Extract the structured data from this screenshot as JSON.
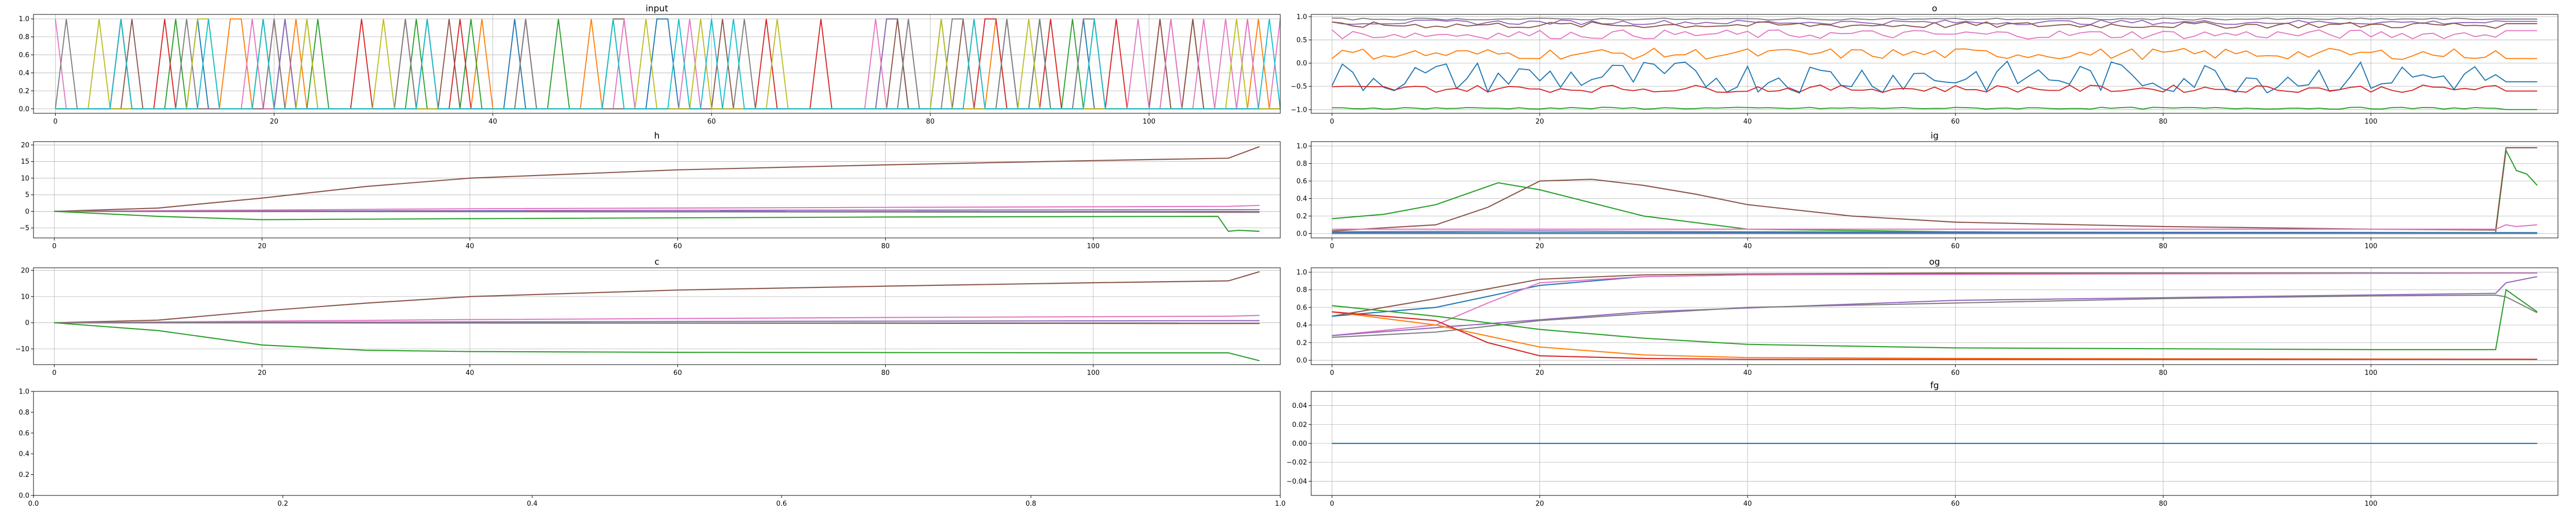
{
  "chart_data": [
    {
      "type": "line",
      "title": "input",
      "xlim": [
        -2,
        112
      ],
      "ylim": [
        -0.05,
        1.05
      ],
      "xticks": [
        0,
        20,
        40,
        60,
        80,
        100
      ],
      "xtick_labels": [
        "0",
        "20",
        "40",
        "60",
        "80",
        "100"
      ],
      "yticks": [
        0,
        0.2,
        0.4,
        0.6,
        0.8,
        1.0
      ],
      "ytick_labels": [
        "0.0",
        "0.2",
        "0.4",
        "0.6",
        "0.8",
        "1.0"
      ],
      "grid": true,
      "series_count": 10,
      "series_colors": [
        "#1f77b4",
        "#ff7f0e",
        "#2ca02c",
        "#d62728",
        "#9467bd",
        "#8c564b",
        "#e377c2",
        "#7f7f7f",
        "#bcbd22",
        "#17becf"
      ],
      "x_end": 112,
      "description": "one-hot token sequence: at each step a different series spikes to 1.0"
    },
    {
      "type": "line",
      "title": "o",
      "xlim": [
        -2,
        118
      ],
      "ylim": [
        -1.08,
        1.05
      ],
      "xticks": [
        0,
        20,
        40,
        60,
        80,
        100
      ],
      "xtick_labels": [
        "0",
        "20",
        "40",
        "60",
        "80",
        "100"
      ],
      "yticks": [
        -1.0,
        -0.5,
        0.0,
        0.5,
        1.0
      ],
      "ytick_labels": [
        "−1.0",
        "−0.5",
        "0.0",
        "0.5",
        "1.0"
      ],
      "grid": true,
      "x_end": 116,
      "series": [
        {
          "color": "#9467bd",
          "base": 0.88,
          "noise": 0.05,
          "end": 0.9
        },
        {
          "color": "#8c564b",
          "base": 0.82,
          "noise": 0.07,
          "end": 0.85
        },
        {
          "color": "#e377c2",
          "base": 0.62,
          "noise": 0.1,
          "end": 0.7
        },
        {
          "color": "#ff7f0e",
          "base": 0.2,
          "noise": 0.12,
          "end": 0.1
        },
        {
          "color": "#1f77b4",
          "base": -0.3,
          "noise": 0.35,
          "end": -0.4
        },
        {
          "color": "#d62728",
          "base": -0.55,
          "noise": 0.08,
          "end": -0.6
        },
        {
          "color": "#2ca02c",
          "base": -0.97,
          "noise": 0.02,
          "end": -1.0
        },
        {
          "color": "#7f7f7f",
          "base": 0.95,
          "noise": 0.02,
          "end": 0.95
        }
      ]
    },
    {
      "type": "line",
      "title": "h",
      "xlim": [
        -2,
        118
      ],
      "ylim": [
        -8,
        21
      ],
      "xticks": [
        0,
        20,
        40,
        60,
        80,
        100
      ],
      "xtick_labels": [
        "0",
        "20",
        "40",
        "60",
        "80",
        "100"
      ],
      "yticks": [
        -5,
        0,
        5,
        10,
        15,
        20
      ],
      "ytick_labels": [
        "−5",
        "0",
        "5",
        "10",
        "15",
        "20"
      ],
      "grid": true,
      "series": [
        {
          "color": "#8c564b",
          "x": [
            0,
            10,
            20,
            30,
            40,
            60,
            80,
            100,
            113,
            116
          ],
          "y": [
            0,
            1,
            4,
            7.5,
            10,
            12.5,
            14,
            15.3,
            16,
            19.5
          ]
        },
        {
          "color": "#e377c2",
          "x": [
            0,
            40,
            80,
            113,
            116
          ],
          "y": [
            0,
            0.8,
            1.2,
            1.5,
            1.8
          ]
        },
        {
          "color": "#9467bd",
          "x": [
            0,
            60,
            116
          ],
          "y": [
            0,
            0.3,
            0.5
          ]
        },
        {
          "color": "#1f77b4",
          "x": [
            0,
            116
          ],
          "y": [
            0,
            -0.1
          ]
        },
        {
          "color": "#d62728",
          "x": [
            0,
            116
          ],
          "y": [
            0,
            -0.2
          ]
        },
        {
          "color": "#7f7f7f",
          "x": [
            0,
            116
          ],
          "y": [
            0,
            -0.3
          ]
        },
        {
          "color": "#2ca02c",
          "x": [
            0,
            10,
            20,
            40,
            80,
            112,
            113,
            114,
            116
          ],
          "y": [
            0,
            -1.5,
            -2.5,
            -2.2,
            -1.7,
            -1.5,
            -6,
            -5.7,
            -6
          ]
        }
      ]
    },
    {
      "type": "line",
      "title": "ig",
      "xlim": [
        -2,
        118
      ],
      "ylim": [
        -0.05,
        1.05
      ],
      "xticks": [
        0,
        20,
        40,
        60,
        80,
        100
      ],
      "xtick_labels": [
        "0",
        "20",
        "40",
        "60",
        "80",
        "100"
      ],
      "yticks": [
        0,
        0.2,
        0.4,
        0.6,
        0.8,
        1.0
      ],
      "ytick_labels": [
        "0.0",
        "0.2",
        "0.4",
        "0.6",
        "0.8",
        "1.0"
      ],
      "grid": true,
      "series": [
        {
          "color": "#2ca02c",
          "x": [
            0,
            5,
            10,
            16,
            20,
            25,
            30,
            40,
            60,
            80,
            100,
            112,
            113,
            114,
            115,
            116
          ],
          "y": [
            0.17,
            0.22,
            0.33,
            0.58,
            0.5,
            0.35,
            0.2,
            0.05,
            0.02,
            0.01,
            0.01,
            0.01,
            0.95,
            0.72,
            0.68,
            0.55
          ]
        },
        {
          "color": "#8c564b",
          "x": [
            0,
            10,
            15,
            20,
            25,
            30,
            35,
            40,
            50,
            60,
            80,
            100,
            112,
            113,
            116
          ],
          "y": [
            0.03,
            0.1,
            0.3,
            0.6,
            0.62,
            0.55,
            0.45,
            0.33,
            0.2,
            0.13,
            0.08,
            0.05,
            0.04,
            0.98,
            0.98
          ]
        },
        {
          "color": "#e377c2",
          "x": [
            0,
            20,
            112,
            113,
            114,
            116
          ],
          "y": [
            0.05,
            0.05,
            0.05,
            0.1,
            0.08,
            0.1
          ]
        },
        {
          "color": "#9467bd",
          "x": [
            0,
            20,
            40,
            116
          ],
          "y": [
            0.02,
            0.03,
            0.02,
            0.01
          ]
        },
        {
          "color": "#1f77b4",
          "x": [
            0,
            116
          ],
          "y": [
            0.01,
            0.01
          ]
        },
        {
          "color": "#7f7f7f",
          "x": [
            0,
            116
          ],
          "y": [
            0.0,
            0.0
          ]
        }
      ]
    },
    {
      "type": "line",
      "title": "c",
      "xlim": [
        -2,
        118
      ],
      "ylim": [
        -16,
        21
      ],
      "xticks": [
        0,
        20,
        40,
        60,
        80,
        100
      ],
      "xtick_labels": [
        "0",
        "20",
        "40",
        "60",
        "80",
        "100"
      ],
      "yticks": [
        -10,
        0,
        10,
        20
      ],
      "ytick_labels": [
        "−10",
        "0",
        "10",
        "20"
      ],
      "grid": true,
      "series": [
        {
          "color": "#8c564b",
          "x": [
            0,
            10,
            20,
            30,
            40,
            60,
            80,
            100,
            113,
            116
          ],
          "y": [
            0,
            1,
            4.5,
            7.5,
            10,
            12.5,
            14,
            15.3,
            16,
            19.5
          ]
        },
        {
          "color": "#e377c2",
          "x": [
            0,
            40,
            80,
            113,
            116
          ],
          "y": [
            0,
            1.2,
            2,
            2.5,
            2.8
          ]
        },
        {
          "color": "#9467bd",
          "x": [
            0,
            60,
            116
          ],
          "y": [
            0,
            0.5,
            0.8
          ]
        },
        {
          "color": "#1f77b4",
          "x": [
            0,
            116
          ],
          "y": [
            0,
            -0.2
          ]
        },
        {
          "color": "#d62728",
          "x": [
            0,
            116
          ],
          "y": [
            0,
            -0.3
          ]
        },
        {
          "color": "#7f7f7f",
          "x": [
            0,
            116
          ],
          "y": [
            0,
            -0.1
          ]
        },
        {
          "color": "#2ca02c",
          "x": [
            0,
            10,
            20,
            30,
            40,
            60,
            80,
            100,
            113,
            116
          ],
          "y": [
            0,
            -3,
            -8.5,
            -10.5,
            -11,
            -11.3,
            -11.4,
            -11.5,
            -11.5,
            -14.5
          ]
        }
      ]
    },
    {
      "type": "line",
      "title": "og",
      "xlim": [
        -2,
        118
      ],
      "ylim": [
        -0.05,
        1.05
      ],
      "xticks": [
        0,
        20,
        40,
        60,
        80,
        100
      ],
      "xtick_labels": [
        "0",
        "20",
        "40",
        "60",
        "80",
        "100"
      ],
      "yticks": [
        0,
        0.2,
        0.4,
        0.6,
        0.8,
        1.0
      ],
      "ytick_labels": [
        "0.0",
        "0.2",
        "0.4",
        "0.6",
        "0.8",
        "1.0"
      ],
      "grid": true,
      "series": [
        {
          "color": "#8c564b",
          "x": [
            0,
            10,
            20,
            30,
            40,
            60,
            116
          ],
          "y": [
            0.5,
            0.7,
            0.92,
            0.97,
            0.98,
            0.99,
            0.99
          ]
        },
        {
          "color": "#1f77b4",
          "x": [
            0,
            10,
            20,
            30,
            40,
            60,
            116
          ],
          "y": [
            0.5,
            0.6,
            0.85,
            0.95,
            0.97,
            0.98,
            0.99
          ]
        },
        {
          "color": "#e377c2",
          "x": [
            0,
            10,
            15,
            20,
            30,
            40,
            116
          ],
          "y": [
            0.28,
            0.4,
            0.65,
            0.88,
            0.95,
            0.97,
            0.99
          ]
        },
        {
          "color": "#9467bd",
          "x": [
            0,
            30,
            60,
            112,
            113,
            116
          ],
          "y": [
            0.28,
            0.55,
            0.68,
            0.76,
            0.88,
            0.95
          ]
        },
        {
          "color": "#7f7f7f",
          "x": [
            0,
            10,
            20,
            30,
            40,
            60,
            80,
            100,
            112,
            113,
            116
          ],
          "y": [
            0.26,
            0.32,
            0.45,
            0.53,
            0.6,
            0.65,
            0.7,
            0.73,
            0.74,
            0.72,
            0.54
          ]
        },
        {
          "color": "#2ca02c",
          "x": [
            0,
            10,
            20,
            30,
            40,
            60,
            80,
            100,
            112,
            113,
            116
          ],
          "y": [
            0.62,
            0.5,
            0.35,
            0.25,
            0.18,
            0.14,
            0.13,
            0.12,
            0.12,
            0.8,
            0.55
          ]
        },
        {
          "color": "#ff7f0e",
          "x": [
            0,
            10,
            20,
            30,
            40,
            60,
            116
          ],
          "y": [
            0.55,
            0.4,
            0.15,
            0.06,
            0.03,
            0.02,
            0.01
          ]
        },
        {
          "color": "#d62728",
          "x": [
            0,
            10,
            15,
            20,
            30,
            40,
            116
          ],
          "y": [
            0.55,
            0.45,
            0.2,
            0.05,
            0.02,
            0.01,
            0.01
          ]
        }
      ]
    },
    {
      "type": "line",
      "title": "",
      "xlim": [
        0,
        1
      ],
      "ylim": [
        0,
        1
      ],
      "xticks": [
        0,
        0.2,
        0.4,
        0.6,
        0.8,
        1.0
      ],
      "xtick_labels": [
        "0.0",
        "0.2",
        "0.4",
        "0.6",
        "0.8",
        "1.0"
      ],
      "yticks": [
        0,
        0.2,
        0.4,
        0.6,
        0.8,
        1.0
      ],
      "ytick_labels": [
        "0.0",
        "0.2",
        "0.4",
        "0.6",
        "0.8",
        "1.0"
      ],
      "grid": false,
      "series": []
    },
    {
      "type": "line",
      "title": "fg",
      "xlim": [
        -2,
        118
      ],
      "ylim": [
        -0.055,
        0.055
      ],
      "xticks": [
        0,
        20,
        40,
        60,
        80,
        100
      ],
      "xtick_labels": [
        "0",
        "20",
        "40",
        "60",
        "80",
        "100"
      ],
      "yticks": [
        -0.04,
        -0.02,
        0.0,
        0.02,
        0.04
      ],
      "ytick_labels": [
        "−0.04",
        "−0.02",
        "0.00",
        "0.02",
        "0.04"
      ],
      "grid": true,
      "series": [
        {
          "color": "#1f77b4",
          "x": [
            0,
            116
          ],
          "y": [
            0,
            0
          ]
        }
      ]
    }
  ]
}
